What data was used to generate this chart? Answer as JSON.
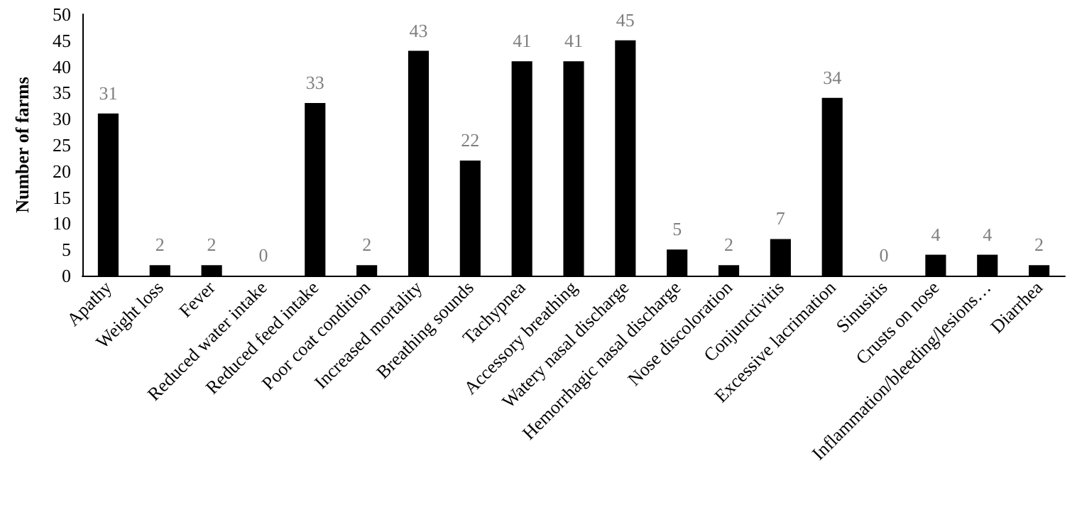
{
  "chart_data": {
    "type": "bar",
    "ylabel": "Number of farms",
    "categories": [
      "Apathy",
      "Weight loss",
      "Fever",
      "Reduced water intake",
      "Reduced feed intake",
      "Poor coat condition",
      "Increased mortality",
      "Breathing sounds",
      "Tachypnea",
      "Accessory breathing",
      "Watery nasal discharge",
      "Hemorrhagic nasal discharge",
      "Nose discoloration",
      "Conjunctivitis",
      "Excessive lacrimation",
      "Sinusitis",
      "Crusts on nose",
      "Inflammation/bleeding/lesions…",
      "Diarrhea"
    ],
    "values": [
      31,
      2,
      2,
      0,
      33,
      2,
      43,
      22,
      41,
      41,
      45,
      5,
      2,
      7,
      34,
      0,
      4,
      4,
      2
    ],
    "color": "#000000",
    "ylim": [
      0,
      50
    ],
    "yticks": [
      0,
      5,
      10,
      15,
      20,
      25,
      30,
      35,
      40,
      45,
      50
    ],
    "data_labels": true
  }
}
